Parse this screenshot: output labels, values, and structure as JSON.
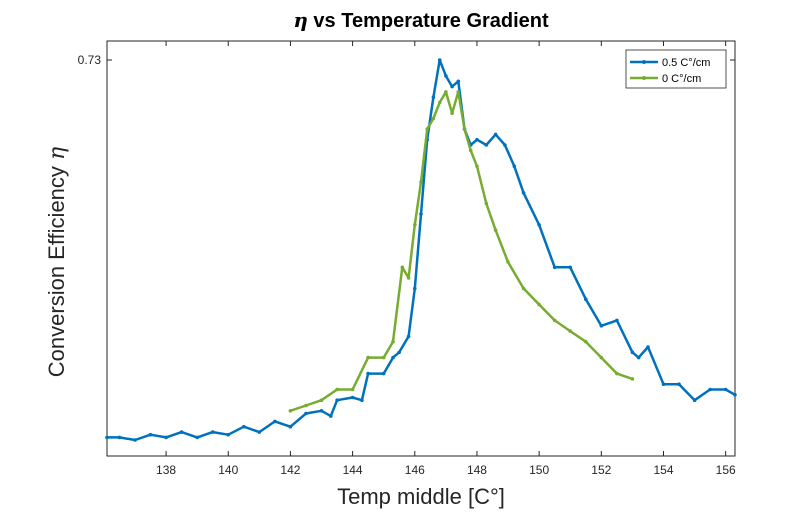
{
  "chart_data": {
    "type": "line",
    "title": "η vs Temperature Gradient",
    "title_symbol": "η",
    "title_rest": " vs Temperature Gradient",
    "xlabel": "Temp middle [C°]",
    "ylabel": "Conversion Efficiency",
    "ylabel_symbol": "η",
    "xlim": [
      136.1,
      156.3
    ],
    "ylim": [
      0.0,
      0.73
    ],
    "xticks": [
      138,
      140,
      142,
      144,
      146,
      148,
      150,
      152,
      154,
      156
    ],
    "yticks": [
      0.73
    ],
    "grid": false,
    "legend_position": "top-right",
    "series": [
      {
        "name": "0.5 C°/cm",
        "color": "#0072BD",
        "x": [
          136.1,
          136.5,
          137.0,
          137.5,
          138.0,
          138.5,
          139.0,
          139.5,
          140.0,
          140.5,
          141.0,
          141.5,
          142.0,
          142.5,
          143.0,
          143.3,
          143.5,
          144.0,
          144.3,
          144.5,
          145.0,
          145.3,
          145.5,
          145.8,
          146.0,
          146.2,
          146.4,
          146.6,
          146.8,
          147.0,
          147.2,
          147.4,
          147.6,
          147.8,
          148.0,
          148.3,
          148.6,
          148.9,
          149.2,
          149.5,
          150.0,
          150.5,
          151.0,
          151.5,
          152.0,
          152.5,
          153.0,
          153.2,
          153.5,
          154.0,
          154.5,
          155.0,
          155.5,
          156.0,
          156.3
        ],
        "y": [
          0.02,
          0.02,
          0.015,
          0.025,
          0.02,
          0.03,
          0.02,
          0.03,
          0.025,
          0.04,
          0.03,
          0.05,
          0.04,
          0.065,
          0.07,
          0.06,
          0.09,
          0.095,
          0.09,
          0.14,
          0.14,
          0.17,
          0.18,
          0.21,
          0.3,
          0.44,
          0.58,
          0.66,
          0.73,
          0.7,
          0.68,
          0.69,
          0.6,
          0.57,
          0.58,
          0.57,
          0.59,
          0.57,
          0.53,
          0.48,
          0.42,
          0.34,
          0.34,
          0.28,
          0.23,
          0.24,
          0.18,
          0.17,
          0.19,
          0.12,
          0.12,
          0.09,
          0.11,
          0.11,
          0.1
        ]
      },
      {
        "name": "0 C°/cm",
        "color": "#77AC30",
        "x": [
          142.0,
          142.5,
          143.0,
          143.5,
          144.0,
          144.5,
          145.0,
          145.3,
          145.6,
          145.8,
          146.0,
          146.2,
          146.4,
          146.6,
          146.8,
          147.0,
          147.2,
          147.4,
          147.6,
          147.8,
          148.0,
          148.3,
          148.6,
          149.0,
          149.5,
          150.0,
          150.5,
          151.0,
          151.5,
          152.0,
          152.5,
          153.0
        ],
        "y": [
          0.07,
          0.08,
          0.09,
          0.11,
          0.11,
          0.17,
          0.17,
          0.2,
          0.34,
          0.32,
          0.42,
          0.5,
          0.6,
          0.62,
          0.65,
          0.67,
          0.63,
          0.67,
          0.6,
          0.56,
          0.53,
          0.46,
          0.41,
          0.35,
          0.3,
          0.27,
          0.24,
          0.22,
          0.2,
          0.17,
          0.14,
          0.13
        ]
      }
    ]
  }
}
